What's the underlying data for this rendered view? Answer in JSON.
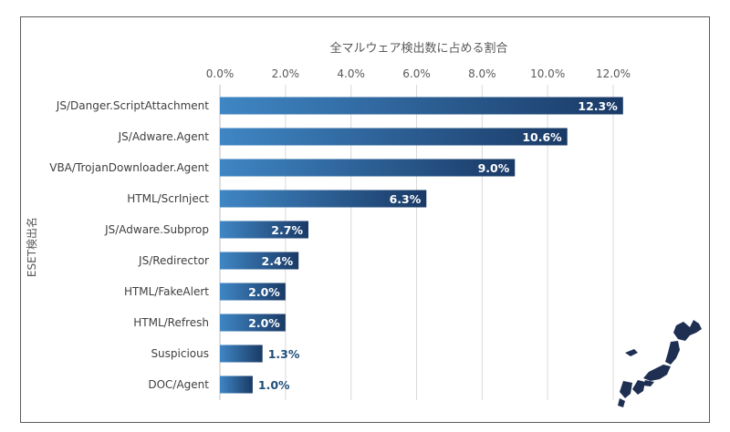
{
  "chart_data": {
    "type": "bar",
    "orientation": "horizontal",
    "title": "全マルウェア検出数に占める割合",
    "xlabel": "全マルウェア検出数に占める割合",
    "ylabel": "ESET検出名",
    "xlim": [
      0,
      12.0
    ],
    "x_ticks": [
      "0.0%",
      "2.0%",
      "4.0%",
      "6.0%",
      "8.0%",
      "10.0%",
      "12.0%"
    ],
    "grid": true,
    "axis_position": "top",
    "categories": [
      "JS/Danger.ScriptAttachment",
      "JS/Adware.Agent",
      "VBA/TrojanDownloader.Agent",
      "HTML/ScrInject",
      "JS/Adware.Subprop",
      "JS/Redirector",
      "HTML/FakeAlert",
      "HTML/Refresh",
      "Suspicious",
      "DOC/Agent"
    ],
    "values": [
      12.3,
      10.6,
      9.0,
      6.3,
      2.7,
      2.4,
      2.0,
      2.0,
      1.3,
      1.0
    ],
    "labels": [
      "12.3%",
      "10.6%",
      "9.0%",
      "6.3%",
      "2.7%",
      "2.4%",
      "2.0%",
      "2.0%",
      "1.3%",
      "1.0%"
    ],
    "colors": {
      "bar_light": "#3f86c4",
      "bar_dark": "#1a3a66",
      "grid": "#d9d9d9",
      "label_outside": "#1f4e79"
    }
  }
}
